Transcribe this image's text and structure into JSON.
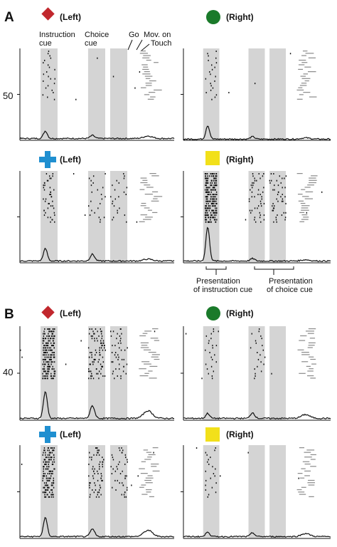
{
  "figure": {
    "panel_A_letter": "A",
    "panel_B_letter": "B",
    "annotations": {
      "instruction_cue_1": "Instruction",
      "instruction_cue_2": "cue",
      "choice_cue_1": "Choice",
      "choice_cue_2": "cue",
      "go": "Go",
      "mov_on": "Mov. on",
      "touch": "Touch",
      "presentation_instr_1": "Presentation",
      "presentation_instr_2": "of instruction cue",
      "presentation_choice_1": "Presentation",
      "presentation_choice_2": "of choice cue"
    },
    "y_label_A": "50",
    "y_label_B": "40",
    "colors": {
      "shade": "#d4d4d4",
      "red_diamond": "#c1272d",
      "green_circle": "#1a7a2a",
      "blue_cross": "#1f8fd0",
      "yellow_square": "#f2e01a",
      "ink": "#111111"
    }
  },
  "chart_data": [
    {
      "type": "raster_psth",
      "panel": "A",
      "icon": "red-diamond",
      "condition": "(Left)",
      "instruction_peak": 0.12,
      "choice_peak": 0.05,
      "baseline": 0.03,
      "late_bump": 0.04,
      "raster_density": "low",
      "touch_times": "spread"
    },
    {
      "type": "raster_psth",
      "panel": "A",
      "icon": "green-circle",
      "condition": "(Right)",
      "instruction_peak": 0.22,
      "choice_peak": 0.04,
      "baseline": 0.02,
      "late_bump": 0.02,
      "raster_density": "low",
      "touch_times": "spread"
    },
    {
      "type": "raster_psth",
      "panel": "A",
      "icon": "blue-cross",
      "condition": "(Left)",
      "instruction_peak": 0.2,
      "choice_peak": 0.11,
      "baseline": 0.03,
      "late_bump": 0.03,
      "raster_density": "medium",
      "touch_times": "spread"
    },
    {
      "type": "raster_psth",
      "panel": "A",
      "icon": "yellow-square",
      "condition": "(Right)",
      "instruction_peak": 0.55,
      "choice_peak": 0.04,
      "baseline": 0.03,
      "late_bump": 0.02,
      "raster_density": "high",
      "touch_times": "spread"
    },
    {
      "type": "raster_psth",
      "panel": "B",
      "icon": "red-diamond",
      "condition": "(Left)",
      "instruction_peak": 0.42,
      "choice_peak": 0.2,
      "baseline": 0.03,
      "late_bump": 0.12,
      "raster_density": "high",
      "touch_times": "spread"
    },
    {
      "type": "raster_psth",
      "panel": "B",
      "icon": "green-circle",
      "condition": "(Right)",
      "instruction_peak": 0.08,
      "choice_peak": 0.09,
      "baseline": 0.03,
      "late_bump": 0.06,
      "raster_density": "low",
      "touch_times": "spread"
    },
    {
      "type": "raster_psth",
      "panel": "B",
      "icon": "blue-cross",
      "condition": "(Left)",
      "instruction_peak": 0.3,
      "choice_peak": 0.12,
      "baseline": 0.03,
      "late_bump": 0.1,
      "raster_density": "high",
      "touch_times": "spread"
    },
    {
      "type": "raster_psth",
      "panel": "B",
      "icon": "yellow-square",
      "condition": "(Right)",
      "instruction_peak": 0.08,
      "choice_peak": 0.06,
      "baseline": 0.03,
      "late_bump": 0.05,
      "raster_density": "low",
      "touch_times": "spread"
    }
  ]
}
